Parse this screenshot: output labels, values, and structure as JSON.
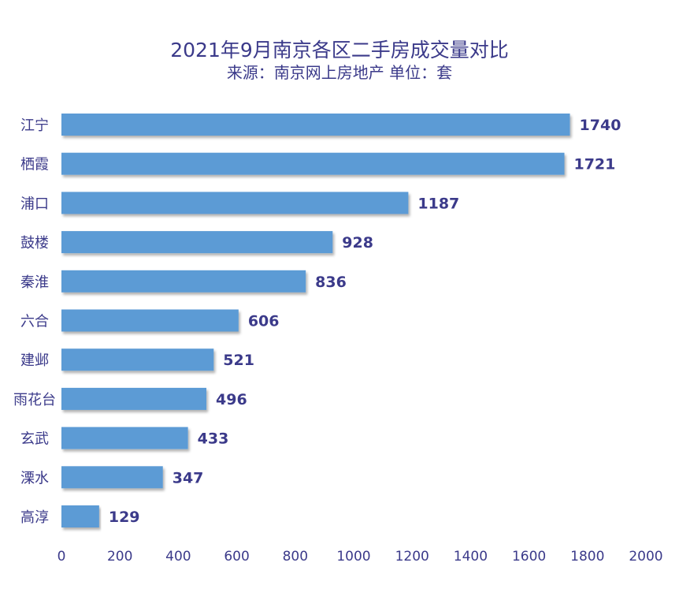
{
  "chart_data": {
    "type": "bar",
    "orientation": "horizontal",
    "title": "2021年9月南京各区二手房成交量对比",
    "subtitle": "来源：南京网上房地产 单位：套",
    "categories": [
      "江宁",
      "栖霞",
      "浦口",
      "鼓楼",
      "秦淮",
      "六合",
      "建邺",
      "雨花台",
      "玄武",
      "溧水",
      "高淳"
    ],
    "values": [
      1740,
      1721,
      1187,
      928,
      836,
      606,
      521,
      496,
      433,
      347,
      129
    ],
    "xlim": [
      0,
      2000
    ],
    "xticks": [
      0,
      200,
      400,
      600,
      800,
      1000,
      1200,
      1400,
      1600,
      1800,
      2000
    ],
    "grid": false,
    "bar_color": "#5b9bd5",
    "text_color": "#3b3a8a"
  }
}
